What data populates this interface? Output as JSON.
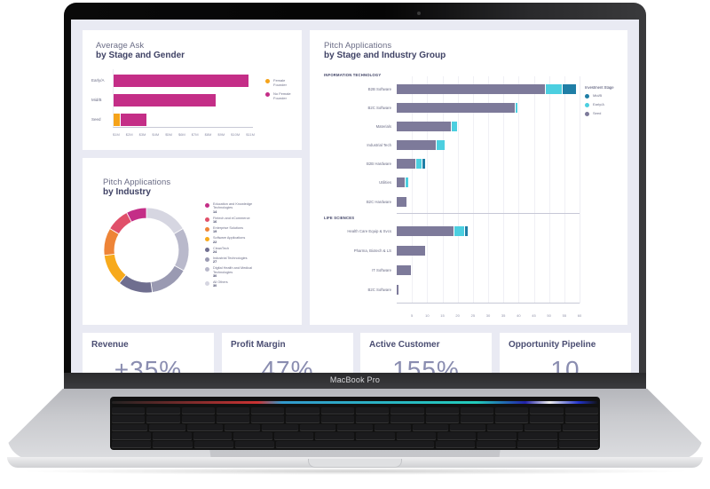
{
  "device": {
    "brand_label": "MacBook Pro"
  },
  "colors": {
    "page_bg": "#e9eaf3",
    "card_bg": "#ffffff",
    "title_dark": "#3f4265",
    "female_founder": "#f5a31a",
    "no_female_founder": "#c42e87",
    "seed": "#7d7a9a",
    "early_a": "#4ccfe0",
    "mid_b": "#1f7ea6"
  },
  "ask_card": {
    "title_light": "Average Ask",
    "title_bold": "by Stage and Gender",
    "legend": [
      {
        "label": "Female Founder",
        "color": "#f5a31a"
      },
      {
        "label": "No Female Founder",
        "color": "#c42e87"
      }
    ]
  },
  "industry_card": {
    "title_light": "Pitch Applications",
    "title_bold": "by Industry"
  },
  "stage_card": {
    "title_light": "Pitch Applications",
    "title_bold": "by Stage and Industry Group",
    "legend_title": "Investment Stage",
    "legend": [
      {
        "label": "Mid/B",
        "color": "#1f7ea6"
      },
      {
        "label": "Early/A",
        "color": "#4ccfe0"
      },
      {
        "label": "Seed",
        "color": "#7d7a9a"
      }
    ],
    "sections": [
      {
        "label": "INFORMATION TECHNOLOGY"
      },
      {
        "label": "LIFE SCIENCES"
      }
    ]
  },
  "kpis": [
    {
      "label": "Revenue",
      "value": "+35%"
    },
    {
      "label": "Profit Margin",
      "value": "47%"
    },
    {
      "label": "Active Customer",
      "value": "155%"
    },
    {
      "label": "Opportunity Pipeline",
      "value": "10"
    }
  ],
  "chart_data": [
    {
      "type": "bar",
      "orientation": "horizontal",
      "stacked": true,
      "title": "Average Ask by Stage and Gender",
      "categories": [
        "Early/A",
        "Mid/B",
        "Seed"
      ],
      "series": [
        {
          "name": "Female Founder",
          "color": "#f5a31a",
          "values": [
            0,
            0,
            0.5
          ]
        },
        {
          "name": "No Female Founder",
          "color": "#c42e87",
          "values": [
            10.6,
            8.0,
            2.0
          ]
        }
      ],
      "x_ticks": [
        "$1M",
        "$2M",
        "$3M",
        "$4M",
        "$5M",
        "$6M",
        "$7M",
        "$8M",
        "$9M",
        "$10M",
        "$11M"
      ],
      "xlabel": "",
      "ylabel": "",
      "xlim": [
        0,
        11
      ],
      "legend_position": "right"
    },
    {
      "type": "pie",
      "donut": true,
      "title": "Pitch Applications by Industry",
      "categories": [
        "Education and Knowledge Technologies",
        "Fintech and eCommerce",
        "Enterprise Solutions",
        "Software Applications",
        "CleanTech",
        "Industrial Technologies",
        "Digital Health and Medical Technologies",
        "All Others"
      ],
      "values": [
        14,
        16,
        19,
        22,
        24,
        27,
        30,
        30
      ],
      "colors": [
        "#c42e87",
        "#e0506a",
        "#ee8437",
        "#f7aa1c",
        "#6f6e8f",
        "#9a9ab2",
        "#b9b9cb",
        "#d6d6e1"
      ],
      "legend_position": "right"
    },
    {
      "type": "bar",
      "orientation": "horizontal",
      "stacked": true,
      "title": "Pitch Applications by Stage and Industry Group",
      "groups": [
        {
          "name": "INFORMATION TECHNOLOGY",
          "categories": [
            "B2B Software",
            "B2C Software",
            "Materials",
            "Industrial Tech",
            "B2B Hardware",
            "Utilities",
            "B2C Hardware"
          ]
        },
        {
          "name": "LIFE SCIENCES",
          "categories": [
            "Health Care Equip & Svcs",
            "Pharma, Biotech & LS",
            "IT Software",
            "B2C Software"
          ]
        }
      ],
      "categories": [
        "B2B Software",
        "B2C Software",
        "Materials",
        "Industrial Tech",
        "B2B Hardware",
        "Utilities",
        "B2C Hardware",
        "Health Care Equip & Svcs",
        "Pharma, Biotech & LS",
        "IT Software",
        "B2C Software (LS)"
      ],
      "series": [
        {
          "name": "Seed",
          "color": "#7d7a9a",
          "values": [
            49,
            39,
            18,
            13,
            6.5,
            3,
            3.5,
            19,
            9.5,
            5,
            1
          ]
        },
        {
          "name": "Early/A",
          "color": "#4ccfe0",
          "values": [
            5.5,
            1,
            2,
            3,
            2,
            1,
            0,
            3.5,
            0,
            0,
            0
          ]
        },
        {
          "name": "Mid/B",
          "color": "#1f7ea6",
          "values": [
            4.5,
            0,
            0,
            0,
            1,
            0,
            0,
            1,
            0,
            0,
            0
          ]
        }
      ],
      "x_ticks": [
        5,
        10,
        15,
        20,
        25,
        30,
        35,
        40,
        45,
        50,
        55,
        60
      ],
      "xlim": [
        0,
        60
      ],
      "xlabel": "",
      "ylabel": "",
      "grid": true,
      "legend_title": "Investment Stage",
      "legend_position": "right"
    }
  ]
}
